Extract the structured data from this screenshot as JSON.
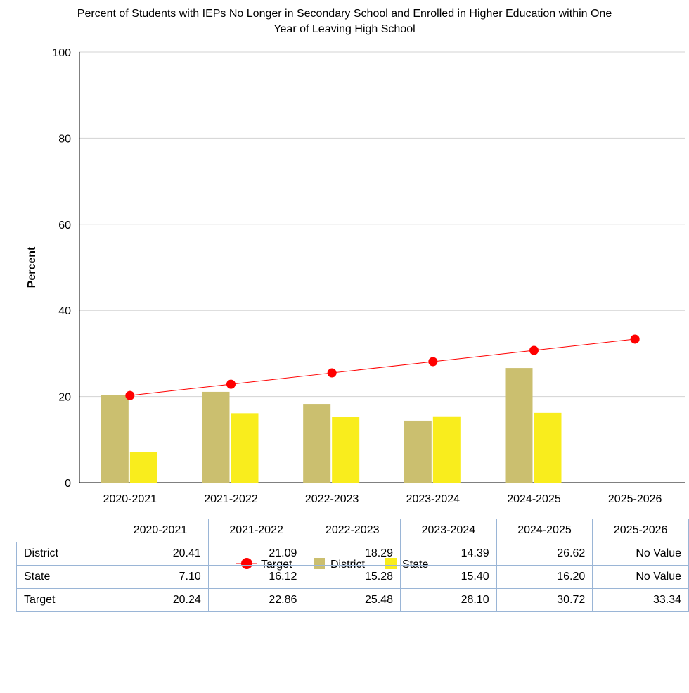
{
  "chart_data": {
    "type": "bar",
    "title": "Percent of Students with IEPs No Longer in Secondary School and Enrolled in Higher Education within One Year of Leaving High School",
    "title_lines": [
      "Percent of Students with IEPs No Longer in Secondary School and Enrolled in Higher Education within One",
      "Year of Leaving High School"
    ],
    "xlabel": "",
    "ylabel": "Percent",
    "ylim": [
      0,
      100
    ],
    "yticks": [
      0,
      20,
      40,
      60,
      80,
      100
    ],
    "grid": true,
    "legend_position": "bottom",
    "categories": [
      "2020-2021",
      "2021-2022",
      "2022-2023",
      "2023-2024",
      "2024-2025",
      "2025-2026"
    ],
    "series": [
      {
        "name": "District",
        "type": "bar",
        "color": "#cbbf6f",
        "values": [
          20.41,
          21.09,
          18.29,
          14.39,
          26.62,
          null
        ]
      },
      {
        "name": "State",
        "type": "bar",
        "color": "#f9ed1d",
        "values": [
          7.1,
          16.12,
          15.28,
          15.4,
          16.2,
          null
        ]
      },
      {
        "name": "Target",
        "type": "line",
        "color": "#ff0000",
        "values": [
          20.24,
          22.86,
          25.48,
          28.1,
          30.72,
          33.34
        ]
      }
    ],
    "legend": [
      "Target",
      "District",
      "State"
    ]
  },
  "table": {
    "columns": [
      "2020-2021",
      "2021-2022",
      "2022-2023",
      "2023-2024",
      "2024-2025",
      "2025-2026"
    ],
    "rows": [
      {
        "label": "District",
        "cells": [
          "20.41",
          "21.09",
          "18.29",
          "14.39",
          "26.62",
          "No Value"
        ]
      },
      {
        "label": "State",
        "cells": [
          "7.10",
          "16.12",
          "15.28",
          "15.40",
          "16.20",
          "No Value"
        ]
      },
      {
        "label": "Target",
        "cells": [
          "20.24",
          "22.86",
          "25.48",
          "28.10",
          "30.72",
          "33.34"
        ]
      }
    ]
  }
}
